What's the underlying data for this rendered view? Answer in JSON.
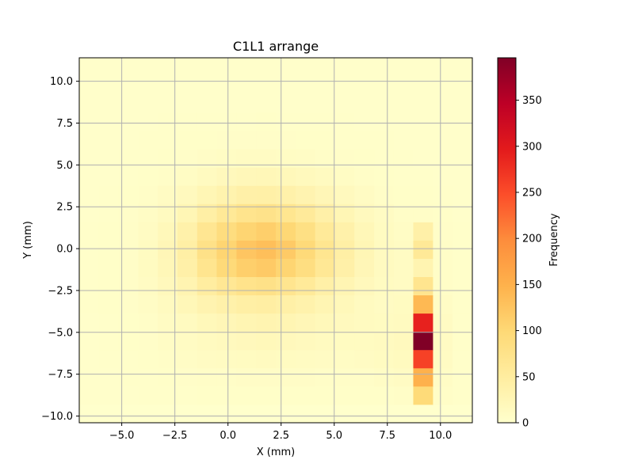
{
  "chart_data": {
    "type": "heatmap",
    "title": "C1L1 arrange",
    "xlabel": "X (mm)",
    "ylabel": "Y (mm)",
    "xlim": [
      -7.0,
      11.5
    ],
    "ylim": [
      -10.4,
      11.4
    ],
    "xticks": [
      -5.0,
      -2.5,
      0.0,
      2.5,
      5.0,
      7.5,
      10.0
    ],
    "xtick_labels": [
      "−5.0",
      "−2.5",
      "0.0",
      "2.5",
      "5.0",
      "7.5",
      "10.0"
    ],
    "yticks": [
      -10.0,
      -7.5,
      -5.0,
      -2.5,
      0.0,
      2.5,
      5.0,
      7.5,
      10.0
    ],
    "ytick_labels": [
      "−10.0",
      "−7.5",
      "−5.0",
      "−2.5",
      "0.0",
      "2.5",
      "5.0",
      "7.5",
      "10.0"
    ],
    "grid": true,
    "colormap": "YlOrRd",
    "colorbar": {
      "label": "Frequency",
      "range": [
        0,
        396
      ],
      "ticks": [
        0,
        50,
        100,
        150,
        200,
        250,
        300,
        350
      ],
      "tick_labels": [
        "0",
        "50",
        "100",
        "150",
        "200",
        "250",
        "300",
        "350"
      ]
    },
    "bins": {
      "x_edges": [
        -7.0,
        -6.08,
        -5.15,
        -4.22,
        -3.3,
        -2.38,
        -1.45,
        -0.53,
        0.4,
        1.33,
        2.25,
        3.18,
        4.1,
        5.02,
        5.95,
        6.88,
        7.8,
        8.72,
        9.65,
        10.57,
        11.5
      ],
      "y_edges": [
        -10.4,
        -9.31,
        -8.22,
        -7.13,
        -6.04,
        -4.95,
        -3.86,
        -2.77,
        -1.68,
        -0.59,
        0.5,
        1.59,
        2.68,
        3.77,
        4.86,
        5.95,
        7.04,
        8.13,
        9.22,
        10.31,
        11.4
      ],
      "counts": [
        [
          0,
          0,
          0,
          0,
          0,
          0,
          0,
          0,
          0,
          0,
          0,
          0,
          0,
          0,
          0,
          0,
          0,
          0,
          0,
          0
        ],
        [
          2,
          2,
          2,
          3,
          3,
          3,
          4,
          4,
          4,
          4,
          4,
          4,
          4,
          4,
          4,
          4,
          6,
          95,
          6,
          3
        ],
        [
          2,
          2,
          3,
          3,
          4,
          5,
          6,
          6,
          7,
          7,
          7,
          7,
          6,
          6,
          6,
          8,
          10,
          150,
          8,
          3
        ],
        [
          2,
          3,
          3,
          4,
          6,
          8,
          10,
          11,
          12,
          13,
          12,
          11,
          10,
          9,
          10,
          12,
          15,
          260,
          10,
          3
        ],
        [
          2,
          3,
          4,
          5,
          8,
          10,
          14,
          16,
          18,
          20,
          18,
          16,
          14,
          12,
          12,
          14,
          16,
          396,
          10,
          3
        ],
        [
          2,
          3,
          4,
          6,
          10,
          14,
          20,
          24,
          28,
          30,
          28,
          24,
          20,
          16,
          14,
          12,
          14,
          290,
          10,
          3
        ],
        [
          3,
          4,
          5,
          8,
          14,
          22,
          32,
          38,
          44,
          46,
          42,
          36,
          28,
          20,
          14,
          10,
          12,
          140,
          8,
          3
        ],
        [
          3,
          4,
          6,
          10,
          18,
          30,
          50,
          64,
          74,
          78,
          70,
          58,
          42,
          28,
          18,
          12,
          10,
          70,
          6,
          3
        ],
        [
          3,
          4,
          6,
          12,
          22,
          40,
          70,
          96,
          112,
          118,
          104,
          86,
          62,
          40,
          24,
          14,
          10,
          30,
          6,
          3
        ],
        [
          3,
          4,
          6,
          12,
          24,
          44,
          78,
          104,
          124,
          132,
          118,
          96,
          68,
          44,
          26,
          14,
          10,
          60,
          6,
          3
        ],
        [
          3,
          4,
          6,
          10,
          20,
          38,
          66,
          88,
          104,
          112,
          100,
          82,
          58,
          38,
          22,
          12,
          8,
          40,
          5,
          3
        ],
        [
          2,
          3,
          5,
          8,
          14,
          26,
          44,
          60,
          72,
          76,
          68,
          56,
          40,
          26,
          16,
          10,
          6,
          6,
          4,
          2
        ],
        [
          2,
          3,
          4,
          6,
          10,
          16,
          26,
          34,
          40,
          42,
          38,
          32,
          24,
          16,
          10,
          6,
          4,
          4,
          3,
          2
        ],
        [
          2,
          2,
          3,
          4,
          6,
          9,
          14,
          18,
          21,
          22,
          20,
          17,
          13,
          9,
          6,
          4,
          3,
          3,
          2,
          2
        ],
        [
          2,
          2,
          3,
          3,
          4,
          5,
          7,
          9,
          10,
          10,
          9,
          8,
          6,
          5,
          4,
          3,
          3,
          2,
          2,
          2
        ],
        [
          2,
          2,
          2,
          3,
          3,
          4,
          4,
          5,
          5,
          5,
          5,
          4,
          4,
          3,
          3,
          3,
          2,
          2,
          2,
          2
        ],
        [
          2,
          2,
          2,
          2,
          3,
          3,
          3,
          3,
          3,
          4,
          3,
          3,
          3,
          3,
          2,
          2,
          2,
          2,
          2,
          2
        ],
        [
          2,
          2,
          2,
          2,
          2,
          2,
          2,
          2,
          2,
          2,
          2,
          2,
          2,
          2,
          2,
          2,
          2,
          2,
          2,
          2
        ],
        [
          2,
          2,
          2,
          2,
          2,
          2,
          2,
          2,
          2,
          2,
          2,
          2,
          2,
          2,
          2,
          2,
          2,
          2,
          2,
          2
        ],
        [
          2,
          2,
          2,
          2,
          2,
          2,
          2,
          2,
          2,
          2,
          2,
          2,
          2,
          2,
          2,
          2,
          2,
          2,
          2,
          2
        ]
      ]
    },
    "colors": {
      "grid": "#b0b0b0",
      "axes": "#000000",
      "cmap_stops": [
        "#ffffcc",
        "#ffeda0",
        "#fed976",
        "#feb24c",
        "#fd8d3c",
        "#fc4e2a",
        "#e31a1c",
        "#bd0026",
        "#800026"
      ]
    }
  }
}
